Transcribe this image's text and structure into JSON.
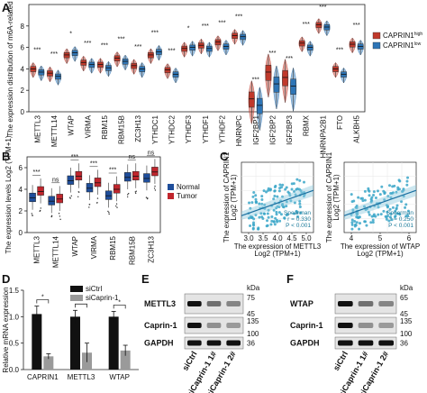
{
  "chart_data": [
    {
      "panel": "A",
      "type": "box",
      "ylabel": "The expression distribution of m6A-related genes",
      "ylim": [
        0,
        10
      ],
      "yticks": [
        "0",
        "2",
        "4",
        "6",
        "8"
      ],
      "categories": [
        "METTL3",
        "METTL14",
        "WTAP",
        "VIRMA",
        "RBM15",
        "RBM15B",
        "ZC3H13",
        "YTHDC1",
        "YTHDC2",
        "YTHDF3",
        "YTHDF1",
        "YTHDF2",
        "HNRNPC",
        "IGF2BP1",
        "IGF2BP2",
        "IGF2BP3",
        "RBMX",
        "HNRNPA2B1",
        "FTO",
        "ALKBH5"
      ],
      "significance": [
        "***",
        "***",
        "*",
        "***",
        "***",
        "***",
        "***",
        "***",
        "***",
        "*",
        "***",
        "***",
        "***",
        "***",
        "***",
        "***",
        "***",
        "***",
        "***",
        "***"
      ],
      "legend_labels": [
        "CAPRIN1",
        "CAPRIN1"
      ],
      "legend_sup": [
        "high",
        "low"
      ],
      "series": [
        {
          "color": "#c0392b",
          "median": [
            4.0,
            3.6,
            5.3,
            4.6,
            4.4,
            5.0,
            4.3,
            5.3,
            3.9,
            5.9,
            6.2,
            6.5,
            7.1,
            1.2,
            3.7,
            3.2,
            6.4,
            8.1,
            4.0,
            6.3
          ]
        },
        {
          "color": "#2e75b6",
          "median": [
            3.7,
            3.3,
            5.5,
            4.4,
            4.1,
            4.7,
            4.0,
            5.6,
            3.5,
            6.0,
            5.9,
            6.1,
            7.0,
            0.6,
            2.6,
            2.4,
            6.0,
            7.9,
            3.5,
            6.1
          ]
        }
      ]
    },
    {
      "panel": "B",
      "type": "box",
      "ylabel": "The expression levels Log2 (TPM+1)",
      "ylim": [
        0,
        7
      ],
      "yticks": [
        "0",
        "2",
        "4",
        "6"
      ],
      "categories": [
        "METTL3",
        "METTL14",
        "WTAP",
        "VIRMA",
        "RBM15",
        "RBM15B",
        "ZC3H13"
      ],
      "significance": [
        "***",
        "ns",
        "***",
        "***",
        "***",
        "ns",
        "ns"
      ],
      "legend": [
        "Normal",
        "Tumor"
      ],
      "series": [
        {
          "name": "Normal",
          "color": "#1f4e9b",
          "median": [
            3.2,
            2.9,
            4.8,
            4.1,
            3.4,
            5.1,
            5.0
          ]
        },
        {
          "name": "Tumor",
          "color": "#c0262d",
          "median": [
            3.8,
            3.1,
            5.2,
            4.6,
            4.0,
            5.2,
            5.6
          ]
        }
      ]
    },
    {
      "panel": "C",
      "type": "scatter",
      "plots": [
        {
          "xlabel": "The expression of METTL3",
          "xunit": "Log2 (TPM+1)",
          "ylabel": "The expression of CAPRIN1",
          "yunit": "Log2 (TPM+1)",
          "xticks": [
            "3.0",
            "3.5",
            "4.0",
            "4.5",
            "5.0"
          ],
          "annotation": [
            "Spearman",
            "r = 0.330",
            "P < 0.001"
          ]
        },
        {
          "xlabel": "The expression of WTAP",
          "xunit": "Log2 (TPM+1)",
          "ylabel": "The expression of CAPRIN1",
          "yunit": "Log2 (TPM+1)",
          "xticks": [
            "4",
            "5",
            "6"
          ],
          "annotation": [
            "Spearman",
            "r = 0.250",
            "P < 0.001"
          ]
        }
      ]
    },
    {
      "panel": "D",
      "type": "bar",
      "ylabel": "Relative mRNA expression",
      "ylim": [
        0,
        1.5
      ],
      "yticks": [
        "0.0",
        "0.5",
        "1.0",
        "1.5"
      ],
      "categories": [
        "CAPRIN1",
        "METTL3",
        "WTAP"
      ],
      "series": [
        {
          "name": "siCtrl",
          "color": "#111111",
          "values": [
            1.05,
            1.0,
            1.0
          ],
          "err": [
            0.15,
            0.12,
            0.1
          ]
        },
        {
          "name": "siCaprin-1",
          "color": "#9a9a9a",
          "values": [
            0.25,
            0.32,
            0.36
          ],
          "err": [
            0.05,
            0.18,
            0.1
          ]
        }
      ],
      "significance": [
        "*",
        "*",
        "*"
      ]
    }
  ],
  "blots": [
    {
      "panel": "E",
      "kda_label": "kDa",
      "rows": [
        {
          "label": "METTL3",
          "kda": [
            "75",
            "45"
          ]
        },
        {
          "label": "Caprin-1",
          "kda": [
            "135",
            "100"
          ]
        },
        {
          "label": "GAPDH",
          "kda": [
            "36"
          ]
        }
      ],
      "lanes": [
        "siCtrl",
        "siCaprin-1 1#",
        "siCaprin-1 2#"
      ]
    },
    {
      "panel": "F",
      "kda_label": "kDa",
      "rows": [
        {
          "label": "WTAP",
          "kda": [
            "65",
            "45"
          ]
        },
        {
          "label": "Caprin-1",
          "kda": [
            "135",
            "100"
          ]
        },
        {
          "label": "GAPDH",
          "kda": [
            "36"
          ]
        }
      ],
      "lanes": [
        "siCtrl",
        "siCaprin-1 1#",
        "siCaprin-1 2#"
      ]
    }
  ]
}
